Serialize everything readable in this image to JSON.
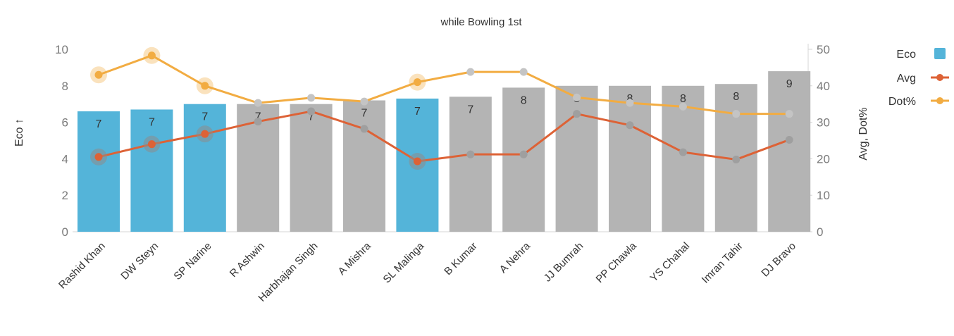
{
  "chart_data": {
    "type": "bar",
    "title": "while Bowling 1st",
    "xlabel": "",
    "ylabel": "Eco ↑",
    "y2label": "Avg, Dot%",
    "ylim": [
      0,
      10
    ],
    "y2lim": [
      0,
      50
    ],
    "yticks": [
      "0",
      "2",
      "4",
      "6",
      "8",
      "10"
    ],
    "y2ticks": [
      "0",
      "10",
      "20",
      "30",
      "40",
      "50"
    ],
    "categories": [
      "Rashid Khan",
      "DW Steyn",
      "SP Narine",
      "R Ashwin",
      "Harbhajan Singh",
      "A Mishra",
      "SL Malinga",
      "B Kumar",
      "A Nehra",
      "JJ Bumrah",
      "PP Chawla",
      "YS Chahal",
      "Imran Tahir",
      "DJ Bravo"
    ],
    "highlighted": [
      true,
      true,
      true,
      false,
      false,
      false,
      true,
      false,
      false,
      false,
      false,
      false,
      false,
      false
    ],
    "bar_labels": [
      "7",
      "7",
      "7",
      "7",
      "7",
      "7",
      "7",
      "7",
      "8",
      "8",
      "8",
      "8",
      "8",
      "9"
    ],
    "series": [
      {
        "name": "Eco",
        "type": "bar",
        "axis": "left",
        "values": [
          6.6,
          6.7,
          7.0,
          7.0,
          7.0,
          7.2,
          7.3,
          7.4,
          7.9,
          8.0,
          8.0,
          8.0,
          8.1,
          8.8
        ]
      },
      {
        "name": "Avg",
        "type": "line",
        "axis": "right",
        "values": [
          20.5,
          24.0,
          26.8,
          30.2,
          33.0,
          28.2,
          19.3,
          21.2,
          21.2,
          32.3,
          29.2,
          21.8,
          19.8,
          25.2
        ]
      },
      {
        "name": "Dot%",
        "type": "line",
        "axis": "right",
        "values": [
          43.0,
          48.3,
          40.0,
          35.3,
          36.7,
          35.7,
          41.0,
          43.8,
          43.8,
          36.8,
          35.3,
          34.3,
          32.3,
          32.3
        ]
      }
    ],
    "legend_position": "top-right",
    "grid": false,
    "colors": {
      "highlight_bar": "#54b4d9",
      "normal_bar": "#b4b4b4",
      "avg_line": "#dd6236",
      "dot_line": "#f2ac42",
      "dim_marker": "#9f9f9f",
      "dim_marker_light": "#c4c4c4",
      "axis": "#d6d6d6"
    }
  }
}
